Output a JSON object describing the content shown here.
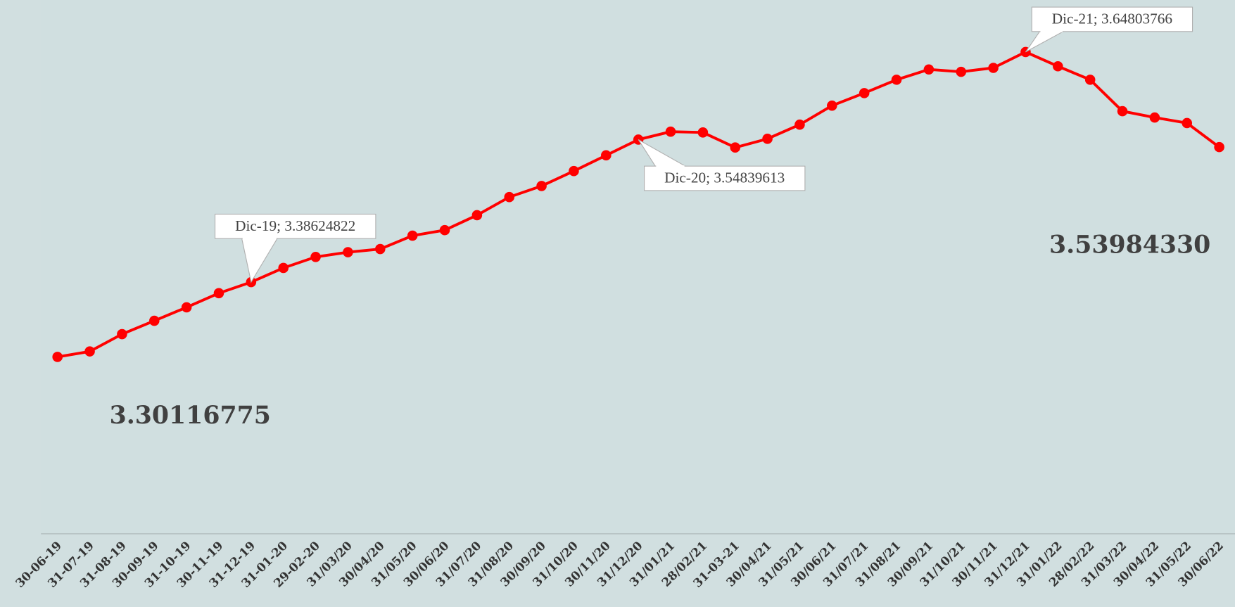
{
  "chart_data": {
    "type": "line",
    "categories": [
      "30-06-19",
      "31-07-19",
      "31-08-19",
      "30-09-19",
      "31-10-19",
      "30-11-19",
      "31-12-19",
      "31-01-20",
      "29-02-20",
      "31/03/20",
      "30/04/20",
      "31/05/20",
      "30/06/20",
      "31/07/20",
      "31/08/20",
      "30/09/20",
      "31/10/20",
      "30/11/20",
      "31/12/20",
      "31/01/21",
      "28/02/21",
      "31-03-21",
      "30/04/21",
      "31/05/21",
      "30/06/21",
      "31/07/21",
      "31/08/21",
      "30/09/21",
      "31/10/21",
      "30/11/21",
      "31/12/21",
      "31/01/22",
      "28/02/22",
      "31/03/22",
      "30/04/22",
      "31/05/22",
      "30/06/22"
    ],
    "series": [
      {
        "color": "#ff0000",
        "values": [
          3.30116775,
          3.3074,
          3.3271,
          3.3423,
          3.3576,
          3.3737,
          3.38624822,
          3.4024,
          3.4149,
          3.4203,
          3.4239,
          3.4391,
          3.4454,
          3.4624,
          3.483,
          3.4956,
          3.5126,
          3.5305,
          3.54839613,
          3.5574,
          3.5565,
          3.5394,
          3.5493,
          3.5654,
          3.587,
          3.6013,
          3.6165,
          3.6282,
          3.6255,
          3.63,
          3.64803766,
          3.6318,
          3.6165,
          3.5807,
          3.5735,
          3.5672,
          3.5398433
        ],
        "value_labels": [
          "3.30116775",
          null,
          null,
          null,
          null,
          null,
          null,
          null,
          null,
          null,
          null,
          null,
          null,
          null,
          null,
          null,
          null,
          null,
          null,
          null,
          null,
          null,
          null,
          null,
          null,
          null,
          null,
          null,
          null,
          null,
          null,
          null,
          null,
          null,
          null,
          null,
          "3.53984330"
        ]
      }
    ],
    "annotations": [
      "Dic-19; 3.38624822",
      "Dic-20; 3.54839613",
      "Dic-21; 3.64803766"
    ],
    "ylim": [
      3.1,
      3.7
    ]
  }
}
